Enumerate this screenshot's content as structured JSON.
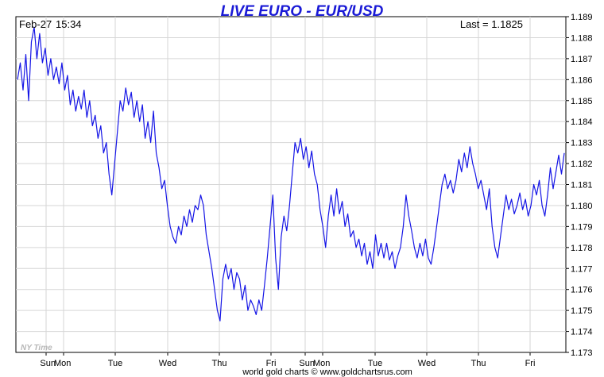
{
  "header": {
    "title": "LIVE EURO - EUR/USD",
    "date": "Feb-27",
    "time": "15:34",
    "last_label": "Last = 1.1825"
  },
  "watermark": "NY Time",
  "footer": "world gold charts © www.goldchartsrus.com",
  "colors": {
    "line": "#1515e6",
    "title": "#1a1ad6",
    "grid": "#d6d6d6"
  },
  "chart_data": {
    "type": "line",
    "title": "LIVE EURO - EUR/USD",
    "xlabel": "",
    "ylabel": "",
    "ylim": [
      1.173,
      1.189
    ],
    "y_ticks": [
      "1.189",
      "1.188",
      "1.187",
      "1.186",
      "1.185",
      "1.184",
      "1.183",
      "1.182",
      "1.181",
      "1.180",
      "1.179",
      "1.178",
      "1.177",
      "1.176",
      "1.175",
      "1.174",
      "1.173"
    ],
    "x_ticks": [
      "Sun",
      "Mon",
      "Tue",
      "Wed",
      "Thu",
      "Fri",
      "Sun",
      "Mon",
      "Tue",
      "Wed",
      "Thu",
      "Fri"
    ],
    "grid": true,
    "last": 1.1825,
    "series": [
      {
        "values": [
          1.186,
          1.1868,
          1.1855,
          1.1872,
          1.185,
          1.1878,
          1.1885,
          1.187,
          1.1882,
          1.1868,
          1.1875,
          1.1862,
          1.187,
          1.186,
          1.1866,
          1.1858,
          1.1868,
          1.1855,
          1.1862,
          1.1848,
          1.1855,
          1.1845,
          1.1852,
          1.1846,
          1.1855,
          1.1842,
          1.185,
          1.1838,
          1.1843,
          1.1832,
          1.1838,
          1.1825,
          1.183,
          1.1815,
          1.1805,
          1.182,
          1.1835,
          1.185,
          1.1845,
          1.1856,
          1.1848,
          1.1854,
          1.1842,
          1.185,
          1.184,
          1.1848,
          1.1832,
          1.184,
          1.183,
          1.1845,
          1.1825,
          1.1818,
          1.1808,
          1.1812,
          1.18,
          1.179,
          1.1785,
          1.1782,
          1.179,
          1.1786,
          1.1795,
          1.179,
          1.1798,
          1.1792,
          1.18,
          1.1798,
          1.1805,
          1.18,
          1.1786,
          1.1778,
          1.177,
          1.176,
          1.175,
          1.1745,
          1.1765,
          1.1772,
          1.1765,
          1.177,
          1.176,
          1.1768,
          1.1765,
          1.1755,
          1.1762,
          1.175,
          1.1755,
          1.1752,
          1.1748,
          1.1755,
          1.175,
          1.1762,
          1.1775,
          1.179,
          1.1805,
          1.1775,
          1.176,
          1.1785,
          1.1795,
          1.1788,
          1.18,
          1.1815,
          1.183,
          1.1825,
          1.1832,
          1.1822,
          1.1828,
          1.1818,
          1.1826,
          1.1815,
          1.181,
          1.1798,
          1.179,
          1.178,
          1.1795,
          1.1805,
          1.1795,
          1.1808,
          1.1796,
          1.1802,
          1.179,
          1.1796,
          1.1785,
          1.1788,
          1.178,
          1.1784,
          1.1776,
          1.1782,
          1.1772,
          1.1778,
          1.177,
          1.1786,
          1.1776,
          1.1782,
          1.1775,
          1.1782,
          1.1774,
          1.1778,
          1.177,
          1.1776,
          1.178,
          1.179,
          1.1805,
          1.1795,
          1.1788,
          1.178,
          1.1775,
          1.1782,
          1.1776,
          1.1784,
          1.1775,
          1.1772,
          1.178,
          1.179,
          1.18,
          1.181,
          1.1815,
          1.1808,
          1.1812,
          1.1806,
          1.1812,
          1.1822,
          1.1816,
          1.1825,
          1.1818,
          1.1828,
          1.182,
          1.1815,
          1.1808,
          1.1812,
          1.1805,
          1.1798,
          1.1808,
          1.179,
          1.178,
          1.1775,
          1.1785,
          1.1795,
          1.1805,
          1.1798,
          1.1803,
          1.1796,
          1.18,
          1.1806,
          1.1798,
          1.1803,
          1.1795,
          1.18,
          1.181,
          1.1805,
          1.1812,
          1.18,
          1.1795,
          1.1805,
          1.1818,
          1.1808,
          1.1816,
          1.1824,
          1.1815,
          1.1825
        ]
      }
    ]
  }
}
